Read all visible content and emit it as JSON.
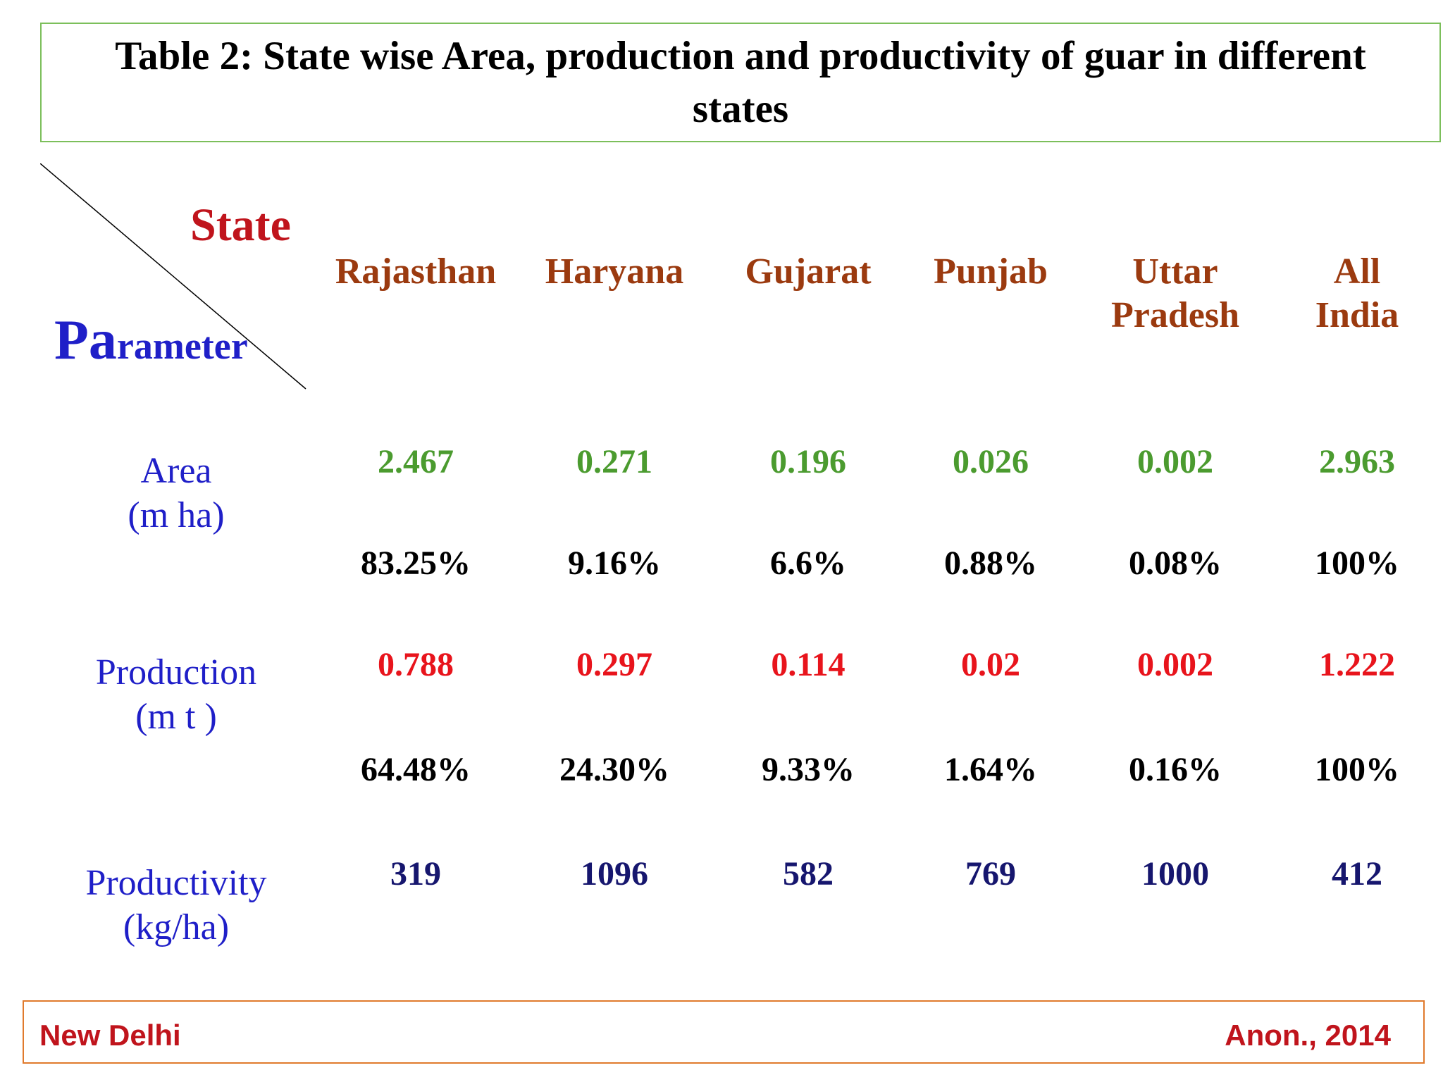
{
  "title": "Table 2: State wise Area, production and productivity of guar in different states",
  "corner": {
    "state_label": "State",
    "param_big": "Pa",
    "param_small": "rameter"
  },
  "states": [
    {
      "line1": "Rajasthan",
      "line2": ""
    },
    {
      "line1": "Haryana",
      "line2": ""
    },
    {
      "line1": "Gujarat",
      "line2": ""
    },
    {
      "line1": "Punjab",
      "line2": ""
    },
    {
      "line1": "Uttar",
      "line2": "Pradesh"
    },
    {
      "line1": "All",
      "line2": "India"
    }
  ],
  "rows": [
    {
      "label1": "Area",
      "label2": "(m ha)"
    },
    {
      "label1": "",
      "label2": ""
    },
    {
      "label1": "Production",
      "label2": "(m t )"
    },
    {
      "label1": "",
      "label2": ""
    },
    {
      "label1": "Productivity",
      "label2": "(kg/ha)"
    }
  ],
  "values": [
    [
      "2.467",
      "0.271",
      "0.196",
      "0.026",
      "0.002",
      "2.963"
    ],
    [
      "83.25%",
      "9.16%",
      "6.6%",
      "0.88%",
      "0.08%",
      "100%"
    ],
    [
      "0.788",
      "0.297",
      "0.114",
      "0.02",
      "0.002",
      "1.222"
    ],
    [
      "64.48%",
      "24.30%",
      "9.33%",
      "1.64%",
      "0.16%",
      "100%"
    ],
    [
      "319",
      "1096",
      "582",
      "769",
      "1000",
      "412"
    ]
  ],
  "footer": {
    "left": "New Delhi",
    "right": "Anon., 2014"
  },
  "colors": {
    "state_label": "#c0141c",
    "parameter_label": "#1f1fc8",
    "state_header": "#9b3a0f",
    "row_label": "#1f1fc8",
    "area_value": "#4b9b2f",
    "share_value": "#000000",
    "production_value": "#e8141c",
    "productivity_value": "#16166e",
    "footer_text": "#c0141c",
    "title_border": "#7cbf5b",
    "footer_border": "#e07a2c"
  }
}
